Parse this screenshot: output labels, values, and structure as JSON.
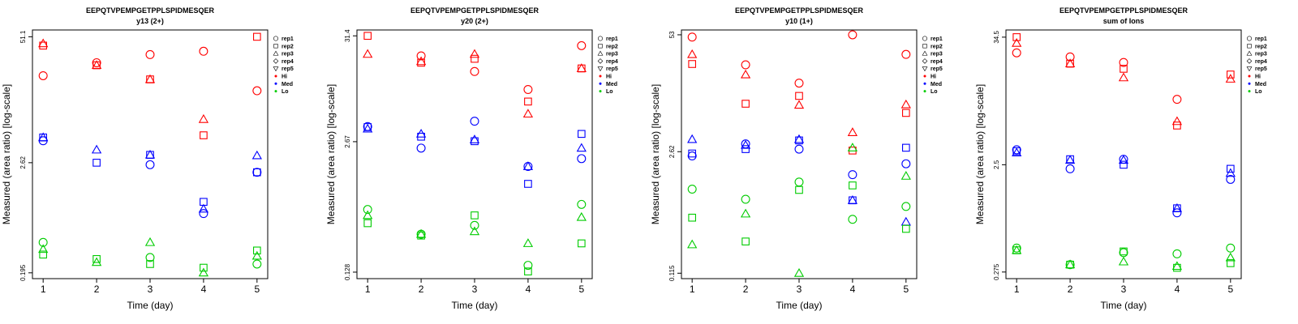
{
  "legend": {
    "reps": [
      "rep1",
      "rep2",
      "rep3",
      "rep4",
      "rep5"
    ],
    "levels": [
      "Hi",
      "Med",
      "Lo"
    ],
    "placement": "right"
  },
  "colors": {
    "Hi": "#ff0000",
    "Med": "#0000ff",
    "Lo": "#00cc00"
  },
  "chart_data": [
    {
      "type": "scatter",
      "title": "EEPQTVPEMPGETPPLSPIDMESQER",
      "subtitle": "y13 (2+)",
      "xlabel": "Time (day)",
      "ylabel": "Measured (area ratio) [log-scale]",
      "log_y": true,
      "x_ticks": [
        1,
        2,
        3,
        4,
        5
      ],
      "y_ticks": [
        "0.195",
        "2.62",
        "51.1"
      ],
      "y_tick_values": [
        0.195,
        2.62,
        51.1
      ],
      "xlim": [
        0.8,
        5.2
      ],
      "ylim": [
        0.17,
        60
      ],
      "series": [
        {
          "level": "Hi",
          "rep": "rep1",
          "x": [
            1,
            2,
            3,
            4,
            5
          ],
          "y": [
            20.4,
            27.7,
            33.6,
            36.3,
            14.3
          ]
        },
        {
          "level": "Hi",
          "rep": "rep2",
          "x": [
            1,
            2,
            3,
            4,
            5
          ],
          "y": [
            41.5,
            26.1,
            18.7,
            5.0,
            51.1
          ]
        },
        {
          "level": "Hi",
          "rep": "rep3",
          "x": [
            1,
            2,
            3,
            4,
            5
          ],
          "y": [
            43.5,
            26.1,
            18.7,
            7.3,
            null
          ]
        },
        {
          "level": "Med",
          "rep": "rep1",
          "x": [
            1,
            2,
            3,
            4,
            5
          ],
          "y": [
            4.4,
            null,
            2.5,
            0.79,
            2.09
          ]
        },
        {
          "level": "Med",
          "rep": "rep2",
          "x": [
            1,
            2,
            3,
            4,
            5
          ],
          "y": [
            4.75,
            2.62,
            3.15,
            1.04,
            2.09
          ]
        },
        {
          "level": "Med",
          "rep": "rep3",
          "x": [
            1,
            2,
            3,
            4,
            5
          ],
          "y": [
            4.75,
            3.55,
            3.15,
            0.88,
            3.1
          ]
        },
        {
          "level": "Lo",
          "rep": "rep1",
          "x": [
            1,
            2,
            3,
            4,
            5
          ],
          "y": [
            0.4,
            null,
            0.28,
            null,
            0.24
          ]
        },
        {
          "level": "Lo",
          "rep": "rep2",
          "x": [
            1,
            2,
            3,
            4,
            5
          ],
          "y": [
            0.3,
            0.27,
            0.24,
            0.22,
            0.33
          ]
        },
        {
          "level": "Lo",
          "rep": "rep3",
          "x": [
            1,
            2,
            3,
            4,
            5
          ],
          "y": [
            0.34,
            0.25,
            0.4,
            0.195,
            0.29
          ]
        }
      ]
    },
    {
      "type": "scatter",
      "title": "EEPQTVPEMPGETPPLSPIDMESQER",
      "subtitle": "y20 (2+)",
      "xlabel": "Time (day)",
      "ylabel": "Measured (area ratio) [log-scale]",
      "log_y": true,
      "x_ticks": [
        1,
        2,
        3,
        4,
        5
      ],
      "y_ticks": [
        "0.128",
        "2.67",
        "31.4"
      ],
      "y_tick_values": [
        0.128,
        2.67,
        31.4
      ],
      "xlim": [
        0.8,
        5.2
      ],
      "ylim": [
        0.11,
        36
      ],
      "series": [
        {
          "level": "Hi",
          "rep": "rep1",
          "x": [
            1,
            2,
            3,
            4,
            5
          ],
          "y": [
            null,
            19.7,
            13.7,
            9.0,
            25.0
          ]
        },
        {
          "level": "Hi",
          "rep": "rep2",
          "x": [
            1,
            2,
            3,
            4,
            5
          ],
          "y": [
            31.4,
            16.8,
            18.4,
            6.8,
            14.7
          ]
        },
        {
          "level": "Hi",
          "rep": "rep3",
          "x": [
            1,
            2,
            3,
            4,
            5
          ],
          "y": [
            20.5,
            17.3,
            20.5,
            5.1,
            14.7
          ]
        },
        {
          "level": "Med",
          "rep": "rep1",
          "x": [
            1,
            2,
            3,
            4,
            5
          ],
          "y": [
            3.8,
            2.3,
            4.3,
            1.5,
            1.8
          ]
        },
        {
          "level": "Med",
          "rep": "rep2",
          "x": [
            1,
            2,
            3,
            4,
            5
          ],
          "y": [
            3.75,
            3.0,
            2.7,
            1.0,
            3.2
          ]
        },
        {
          "level": "Med",
          "rep": "rep3",
          "x": [
            1,
            2,
            3,
            4,
            5
          ],
          "y": [
            3.6,
            3.2,
            2.8,
            1.5,
            2.3
          ]
        },
        {
          "level": "Lo",
          "rep": "rep1",
          "x": [
            1,
            2,
            3,
            4,
            5
          ],
          "y": [
            0.55,
            0.31,
            0.38,
            0.15,
            0.62
          ]
        },
        {
          "level": "Lo",
          "rep": "rep2",
          "x": [
            1,
            2,
            3,
            4,
            5
          ],
          "y": [
            0.4,
            0.3,
            0.48,
            0.13,
            0.25
          ]
        },
        {
          "level": "Lo",
          "rep": "rep3",
          "x": [
            1,
            2,
            3,
            4,
            5
          ],
          "y": [
            0.48,
            0.31,
            0.33,
            0.25,
            0.46
          ]
        }
      ]
    },
    {
      "type": "scatter",
      "title": "EEPQTVPEMPGETPPLSPIDMESQER",
      "subtitle": "y10 (1+)",
      "xlabel": "Time (day)",
      "ylabel": "Measured (area ratio) [log-scale]",
      "log_y": true,
      "x_ticks": [
        1,
        2,
        3,
        4,
        5
      ],
      "y_ticks": [
        "0.115",
        "2.62",
        "53"
      ],
      "y_tick_values": [
        0.115,
        2.62,
        53
      ],
      "xlim": [
        0.8,
        5.2
      ],
      "ylim": [
        0.1,
        60
      ],
      "series": [
        {
          "level": "Hi",
          "rep": "rep1",
          "x": [
            1,
            2,
            3,
            4,
            5
          ],
          "y": [
            50.0,
            24.5,
            15.3,
            53.0,
            32.0
          ]
        },
        {
          "level": "Hi",
          "rep": "rep2",
          "x": [
            1,
            2,
            3,
            4,
            5
          ],
          "y": [
            25.0,
            9.0,
            11.0,
            2.7,
            7.1
          ]
        },
        {
          "level": "Hi",
          "rep": "rep3",
          "x": [
            1,
            2,
            3,
            4,
            5
          ],
          "y": [
            32.0,
            19.0,
            8.7,
            4.3,
            8.8
          ]
        },
        {
          "level": "Med",
          "rep": "rep1",
          "x": [
            1,
            2,
            3,
            4,
            5
          ],
          "y": [
            2.35,
            3.2,
            2.8,
            1.45,
            1.92
          ]
        },
        {
          "level": "Med",
          "rep": "rep2",
          "x": [
            1,
            2,
            3,
            4,
            5
          ],
          "y": [
            2.5,
            2.8,
            3.5,
            0.75,
            2.9
          ]
        },
        {
          "level": "Med",
          "rep": "rep3",
          "x": [
            1,
            2,
            3,
            4,
            5
          ],
          "y": [
            3.6,
            3.1,
            3.6,
            0.75,
            0.43
          ]
        },
        {
          "level": "Lo",
          "rep": "rep1",
          "x": [
            1,
            2,
            3,
            4,
            5
          ],
          "y": [
            1.0,
            0.77,
            1.2,
            0.46,
            0.64
          ]
        },
        {
          "level": "Lo",
          "rep": "rep2",
          "x": [
            1,
            2,
            3,
            4,
            5
          ],
          "y": [
            0.48,
            0.26,
            0.98,
            1.1,
            0.36
          ]
        },
        {
          "level": "Lo",
          "rep": "rep3",
          "x": [
            1,
            2,
            3,
            4,
            5
          ],
          "y": [
            0.24,
            0.53,
            0.115,
            2.9,
            1.4
          ]
        }
      ]
    },
    {
      "type": "scatter",
      "title": "EEPQTVPEMPGETPPLSPIDMESQER",
      "subtitle": "sum of Ions",
      "xlabel": "Time (day)",
      "ylabel": "Measured (area ratio) [log-scale]",
      "log_y": true,
      "x_ticks": [
        1,
        2,
        3,
        4,
        5
      ],
      "y_ticks": [
        "0.275",
        "2.5",
        "34.5"
      ],
      "y_tick_values": [
        0.275,
        2.5,
        34.5
      ],
      "xlim": [
        0.8,
        5.2
      ],
      "ylim": [
        0.24,
        40
      ],
      "series": [
        {
          "level": "Hi",
          "rep": "rep1",
          "x": [
            1,
            2,
            3,
            4,
            5
          ],
          "y": [
            25.0,
            23.0,
            20.5,
            9.6,
            null
          ]
        },
        {
          "level": "Hi",
          "rep": "rep2",
          "x": [
            1,
            2,
            3,
            4,
            5
          ],
          "y": [
            34.5,
            20.0,
            18.0,
            5.6,
            16.0
          ]
        },
        {
          "level": "Hi",
          "rep": "rep3",
          "x": [
            1,
            2,
            3,
            4,
            5
          ],
          "y": [
            30.5,
            20.0,
            15.0,
            6.1,
            14.6
          ]
        },
        {
          "level": "Med",
          "rep": "rep1",
          "x": [
            1,
            2,
            3,
            4,
            5
          ],
          "y": [
            3.4,
            2.3,
            2.8,
            0.93,
            1.85
          ]
        },
        {
          "level": "Med",
          "rep": "rep2",
          "x": [
            1,
            2,
            3,
            4,
            5
          ],
          "y": [
            3.3,
            2.8,
            2.5,
            1.02,
            2.3
          ]
        },
        {
          "level": "Med",
          "rep": "rep3",
          "x": [
            1,
            2,
            3,
            4,
            5
          ],
          "y": [
            3.2,
            2.75,
            2.75,
            1.02,
            2.1
          ]
        },
        {
          "level": "Lo",
          "rep": "rep1",
          "x": [
            1,
            2,
            3,
            4,
            5
          ],
          "y": [
            0.45,
            0.32,
            0.41,
            0.4,
            0.45
          ]
        },
        {
          "level": "Lo",
          "rep": "rep2",
          "x": [
            1,
            2,
            3,
            4,
            5
          ],
          "y": [
            0.43,
            0.32,
            0.42,
            0.3,
            0.33
          ]
        },
        {
          "level": "Lo",
          "rep": "rep3",
          "x": [
            1,
            2,
            3,
            4,
            5
          ],
          "y": [
            0.43,
            0.32,
            0.34,
            0.31,
            0.37
          ]
        }
      ]
    }
  ]
}
